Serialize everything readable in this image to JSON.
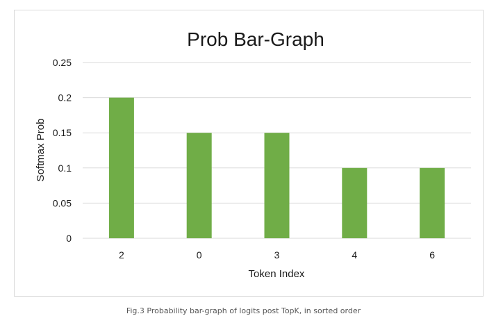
{
  "chart_data": {
    "type": "bar",
    "title": "Prob Bar-Graph",
    "xlabel": "Token Index",
    "ylabel": "Softmax Prob",
    "categories": [
      "2",
      "0",
      "3",
      "4",
      "6"
    ],
    "values": [
      0.2,
      0.15,
      0.15,
      0.1,
      0.1
    ],
    "ylim": [
      0,
      0.25
    ],
    "yticks": [
      "0",
      "0.05",
      "0.1",
      "0.15",
      "0.2",
      "0.25"
    ],
    "grid": true,
    "bar_color": "#70ad47",
    "grid_color": "#d9d9d9"
  },
  "caption": "Fig.3 Probability bar-graph of logits post TopK, in sorted order"
}
